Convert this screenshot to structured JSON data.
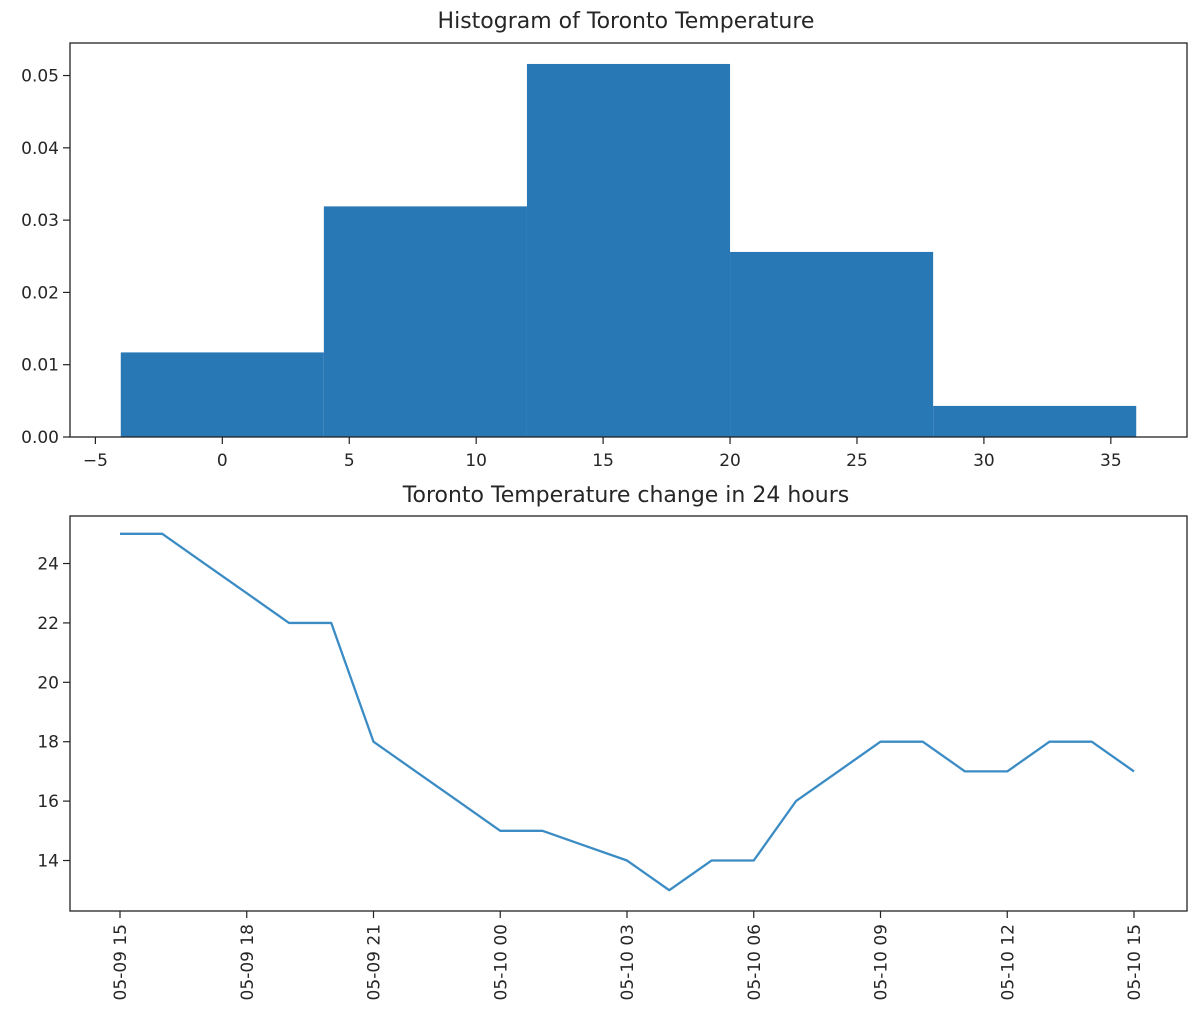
{
  "chart_data": [
    {
      "type": "bar",
      "title": "Histogram of Toronto Temperature",
      "xlabel": "",
      "ylabel": "",
      "xlim": [
        -6,
        38
      ],
      "ylim": [
        0,
        0.0545
      ],
      "bins": [
        {
          "x0": -4,
          "x1": 4,
          "value": 0.0117
        },
        {
          "x0": 4,
          "x1": 12,
          "value": 0.0319
        },
        {
          "x0": 12,
          "x1": 20,
          "value": 0.0516
        },
        {
          "x0": 20,
          "x1": 28,
          "value": 0.0256
        },
        {
          "x0": 28,
          "x1": 36,
          "value": 0.0043
        }
      ],
      "xticks": [
        -5,
        0,
        5,
        10,
        15,
        20,
        25,
        30,
        35
      ],
      "xtick_labels": [
        "−5",
        "0",
        "5",
        "10",
        "15",
        "20",
        "25",
        "30",
        "35"
      ],
      "yticks": [
        0.0,
        0.01,
        0.02,
        0.03,
        0.04,
        0.05
      ],
      "ytick_labels": [
        "0.00",
        "0.01",
        "0.02",
        "0.03",
        "0.04",
        "0.05"
      ],
      "grid": false,
      "bar_color": "#2878b5"
    },
    {
      "type": "line",
      "title": "Toronto Temperature change in 24 hours",
      "xlabel": "",
      "ylabel": "",
      "ylim": [
        12.3,
        25.6
      ],
      "x": [
        "05-09 15",
        "05-09 16",
        "05-09 17",
        "05-09 18",
        "05-09 19",
        "05-09 20",
        "05-09 21",
        "05-09 22",
        "05-09 23",
        "05-10 00",
        "05-10 01",
        "05-10 02",
        "05-10 03",
        "05-10 04",
        "05-10 05",
        "05-10 06",
        "05-10 07",
        "05-10 08",
        "05-10 09",
        "05-10 10",
        "05-10 11",
        "05-10 12",
        "05-10 13",
        "05-10 14",
        "05-10 15"
      ],
      "y": [
        25,
        25,
        24,
        23,
        22,
        22,
        18,
        17,
        16,
        15,
        15,
        14.5,
        14,
        13,
        14,
        14,
        16,
        17,
        18,
        18,
        17,
        17,
        18,
        18,
        17
      ],
      "xtick_labels": [
        "05-09 15",
        "05-09 18",
        "05-09 21",
        "05-10 00",
        "05-10 03",
        "05-10 06",
        "05-10 09",
        "05-10 12",
        "05-10 15"
      ],
      "yticks": [
        14,
        16,
        18,
        20,
        22,
        24
      ],
      "ytick_labels": [
        "14",
        "16",
        "18",
        "20",
        "22",
        "24"
      ],
      "grid": false,
      "line_color": "#3b8cc4"
    }
  ]
}
